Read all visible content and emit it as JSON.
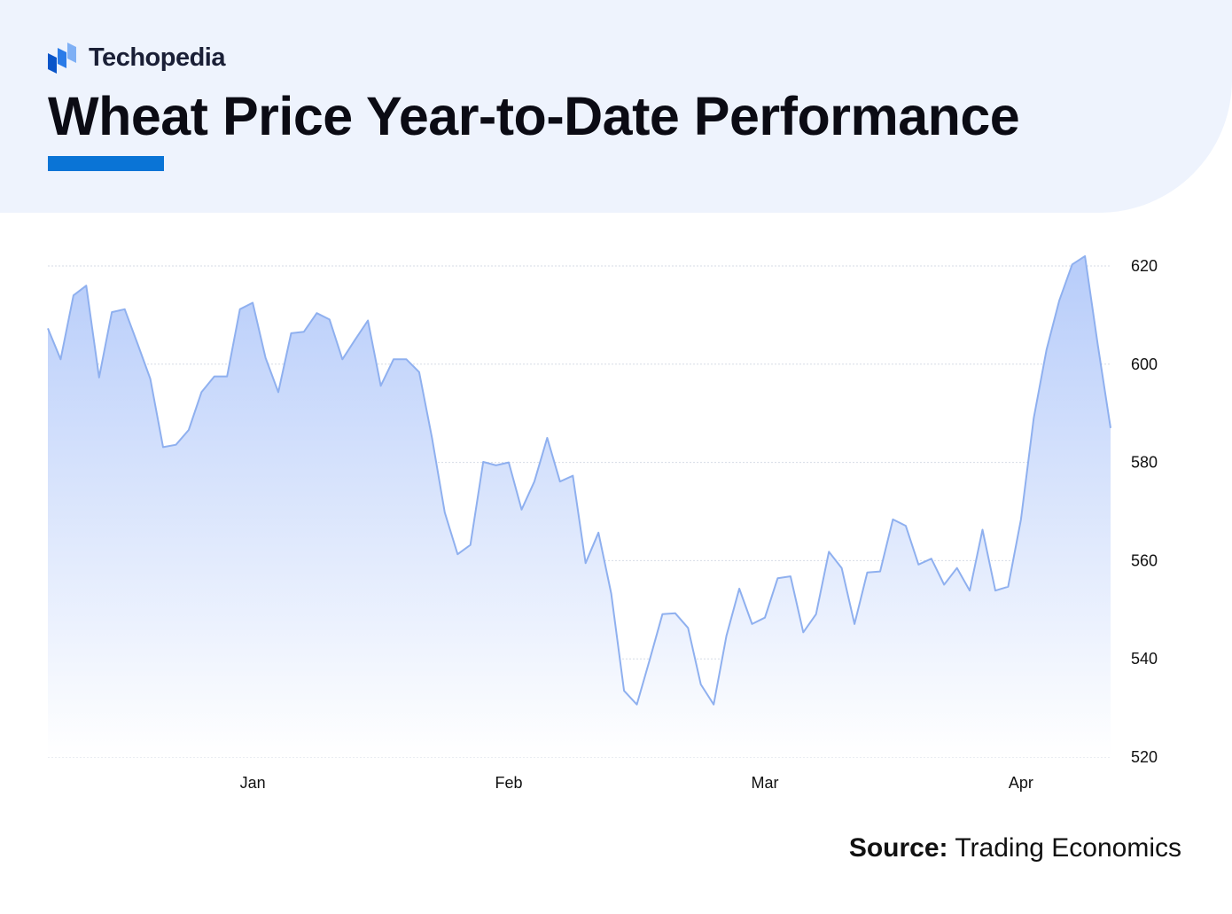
{
  "brand": {
    "name": "Techopedia",
    "icon": "techopedia-logo-icon"
  },
  "header": {
    "title": "Wheat Price Year-to-Date Performance"
  },
  "source": {
    "label": "Source:",
    "text": "Trading Economics"
  },
  "colors": {
    "accent": "#0a74d6",
    "line": "#8fb0ef",
    "fill_top": "#b8cdfa",
    "header_bg": "#eef3fd"
  },
  "chart_data": {
    "type": "area",
    "title": "Wheat Price Year-to-Date Performance",
    "xlabel": "",
    "ylabel": "",
    "ylim": [
      520,
      620
    ],
    "y_ticks": [
      620,
      600,
      580,
      560,
      540,
      520
    ],
    "y_axis_side": "right",
    "grid": true,
    "x_ticks": [
      {
        "label": "Jan",
        "index": 16
      },
      {
        "label": "Feb",
        "index": 36
      },
      {
        "label": "Mar",
        "index": 56
      },
      {
        "label": "Apr",
        "index": 76
      }
    ],
    "series": [
      {
        "name": "Wheat price",
        "values": [
          607.3,
          601.0,
          614.0,
          616.0,
          597.3,
          610.6,
          611.2,
          604.2,
          597.0,
          583.1,
          583.6,
          586.6,
          594.3,
          597.5,
          597.5,
          611.2,
          612.5,
          601.3,
          594.3,
          606.3,
          606.6,
          610.4,
          609.1,
          601.0,
          605.0,
          608.9,
          595.6,
          601.0,
          601.0,
          598.4,
          585.0,
          569.8,
          561.3,
          563.2,
          580.1,
          579.4,
          580.0,
          570.4,
          576.1,
          585.0,
          576.1,
          577.3,
          559.5,
          565.7,
          553.3,
          533.5,
          530.7,
          539.8,
          549.1,
          549.3,
          546.3,
          534.8,
          530.7,
          544.7,
          554.3,
          547.1,
          548.4,
          556.4,
          556.8,
          545.4,
          549.1,
          561.8,
          558.5,
          547.1,
          557.6,
          557.8,
          568.4,
          567.1,
          559.2,
          560.4,
          555.1,
          558.5,
          553.9,
          566.3,
          553.9,
          554.7,
          568.4,
          589.0,
          603.0,
          613.0,
          620.3,
          622.0,
          603.9,
          587.0
        ]
      }
    ]
  }
}
